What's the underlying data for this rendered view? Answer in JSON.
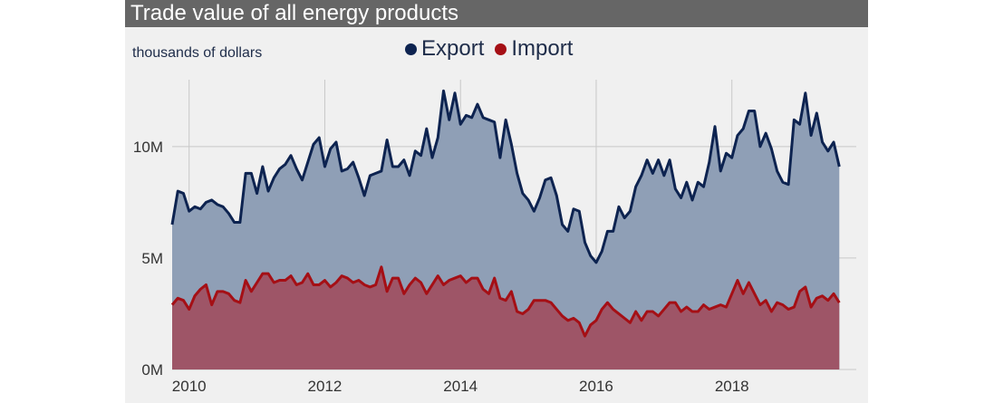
{
  "title": "Trade value of all energy products",
  "unit_label": "thousands of dollars",
  "legend": [
    {
      "label": "Export",
      "color": "#0d2350"
    },
    {
      "label": "Import",
      "color": "#a50f15"
    }
  ],
  "colors": {
    "export_line": "#0d2350",
    "export_fill": "#8f9fb6",
    "import_line": "#a50f15",
    "import_fill": "#9e5567"
  },
  "chart_data": {
    "type": "area",
    "x_start": "2009-10",
    "x_end": "2019-10",
    "xlim": [
      "2009-10",
      "2019-11"
    ],
    "ylim": [
      0,
      13000000
    ],
    "y_ticks": [
      {
        "value": 0,
        "label": "0M"
      },
      {
        "value": 5000000,
        "label": "5M"
      },
      {
        "value": 10000000,
        "label": "10M"
      }
    ],
    "x_ticks": [
      {
        "date": "2010-01",
        "label": "2010"
      },
      {
        "date": "2012-01",
        "label": "2012"
      },
      {
        "date": "2014-01",
        "label": "2014"
      },
      {
        "date": "2016-01",
        "label": "2016"
      },
      {
        "date": "2018-01",
        "label": "2018"
      }
    ],
    "grid": true,
    "legend_position": "top-center",
    "series": [
      {
        "name": "Export",
        "values": [
          6.5,
          8.0,
          7.9,
          7.1,
          7.3,
          7.2,
          7.5,
          7.6,
          7.4,
          7.3,
          7.0,
          6.6,
          6.6,
          8.8,
          8.8,
          7.9,
          9.1,
          8.0,
          8.6,
          9.0,
          9.2,
          9.6,
          9.0,
          8.5,
          9.3,
          10.1,
          10.4,
          9.1,
          9.9,
          10.2,
          8.9,
          9.0,
          9.3,
          8.6,
          7.8,
          8.7,
          8.8,
          8.9,
          10.3,
          9.1,
          9.1,
          9.4,
          8.7,
          9.8,
          9.6,
          10.8,
          9.5,
          10.4,
          12.5,
          11.2,
          12.4,
          11.0,
          11.4,
          11.3,
          11.9,
          11.3,
          11.2,
          11.1,
          9.5,
          11.2,
          10.1,
          8.8,
          7.9,
          7.6,
          7.1,
          7.7,
          8.5,
          8.6,
          7.8,
          6.5,
          6.2,
          7.2,
          7.1,
          5.7,
          5.1,
          4.8,
          5.3,
          6.2,
          6.2,
          7.3,
          6.8,
          7.1,
          8.2,
          8.7,
          9.4,
          8.8,
          9.4,
          8.7,
          9.4,
          8.1,
          7.7,
          8.4,
          7.6,
          8.4,
          8.2,
          9.3,
          10.9,
          8.9,
          9.7,
          9.5,
          10.5,
          10.8,
          11.6,
          11.6,
          10.0,
          10.6,
          9.9,
          8.9,
          8.4,
          8.3,
          11.2,
          11.0,
          12.4,
          10.5,
          11.5,
          10.2,
          9.8,
          10.2,
          9.1
        ],
        "color": "#0d2350"
      },
      {
        "name": "Import",
        "values": [
          2.9,
          3.2,
          3.1,
          2.7,
          3.3,
          3.6,
          3.8,
          2.9,
          3.5,
          3.5,
          3.4,
          3.1,
          3.0,
          4.0,
          3.5,
          3.9,
          4.3,
          4.3,
          3.9,
          4.0,
          4.0,
          4.2,
          3.8,
          3.9,
          4.3,
          3.8,
          3.8,
          4.0,
          3.7,
          3.9,
          4.2,
          4.1,
          3.9,
          4.0,
          3.8,
          3.7,
          3.8,
          4.6,
          3.5,
          4.1,
          4.1,
          3.4,
          3.8,
          4.1,
          3.9,
          3.4,
          3.8,
          4.2,
          3.8,
          4.0,
          4.1,
          4.2,
          3.9,
          4.1,
          4.1,
          3.6,
          3.4,
          4.1,
          3.2,
          3.1,
          3.5,
          2.6,
          2.5,
          2.7,
          3.1,
          3.1,
          3.1,
          3.0,
          2.7,
          2.4,
          2.2,
          2.3,
          2.1,
          1.5,
          2.0,
          2.2,
          2.7,
          3.0,
          2.7,
          2.5,
          2.3,
          2.1,
          2.6,
          2.2,
          2.6,
          2.6,
          2.4,
          2.7,
          3.0,
          3.0,
          2.6,
          2.8,
          2.6,
          2.6,
          2.9,
          2.7,
          2.8,
          2.9,
          2.8,
          3.4,
          4.0,
          3.4,
          3.9,
          3.4,
          2.9,
          3.1,
          2.6,
          3.0,
          2.9,
          2.7,
          2.8,
          3.5,
          3.7,
          2.8,
          3.2,
          3.3,
          3.1,
          3.4,
          3.0
        ],
        "color": "#a50f15"
      }
    ],
    "value_scale_note_millions": true
  }
}
